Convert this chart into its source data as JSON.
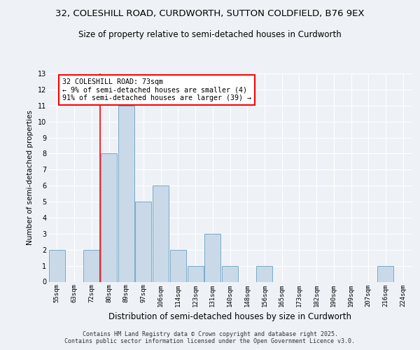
{
  "title1": "32, COLESHILL ROAD, CURDWORTH, SUTTON COLDFIELD, B76 9EX",
  "title2": "Size of property relative to semi-detached houses in Curdworth",
  "xlabel": "Distribution of semi-detached houses by size in Curdworth",
  "ylabel": "Number of semi-detached properties",
  "categories": [
    "55sqm",
    "63sqm",
    "72sqm",
    "80sqm",
    "89sqm",
    "97sqm",
    "106sqm",
    "114sqm",
    "123sqm",
    "131sqm",
    "140sqm",
    "148sqm",
    "156sqm",
    "165sqm",
    "173sqm",
    "182sqm",
    "190sqm",
    "199sqm",
    "207sqm",
    "216sqm",
    "224sqm"
  ],
  "values": [
    2,
    0,
    2,
    8,
    11,
    5,
    6,
    2,
    1,
    3,
    1,
    0,
    1,
    0,
    0,
    0,
    0,
    0,
    0,
    1,
    0
  ],
  "bar_color": "#c9d9e8",
  "bar_edgecolor": "#7aaac8",
  "redline_index": 2.5,
  "annotation_text": "32 COLESHILL ROAD: 73sqm\n← 9% of semi-detached houses are smaller (4)\n91% of semi-detached houses are larger (39) →",
  "ylim": [
    0,
    13
  ],
  "yticks": [
    0,
    1,
    2,
    3,
    4,
    5,
    6,
    7,
    8,
    9,
    10,
    11,
    12,
    13
  ],
  "footer1": "Contains HM Land Registry data © Crown copyright and database right 2025.",
  "footer2": "Contains public sector information licensed under the Open Government Licence v3.0.",
  "bg_color": "#eef2f7",
  "plot_bg_color": "#eef2f7",
  "title1_fontsize": 9.5,
  "title2_fontsize": 8.5,
  "ylabel_fontsize": 7.5,
  "xlabel_fontsize": 8.5,
  "tick_fontsize": 6.5,
  "annotation_fontsize": 7.2,
  "footer_fontsize": 6.0
}
